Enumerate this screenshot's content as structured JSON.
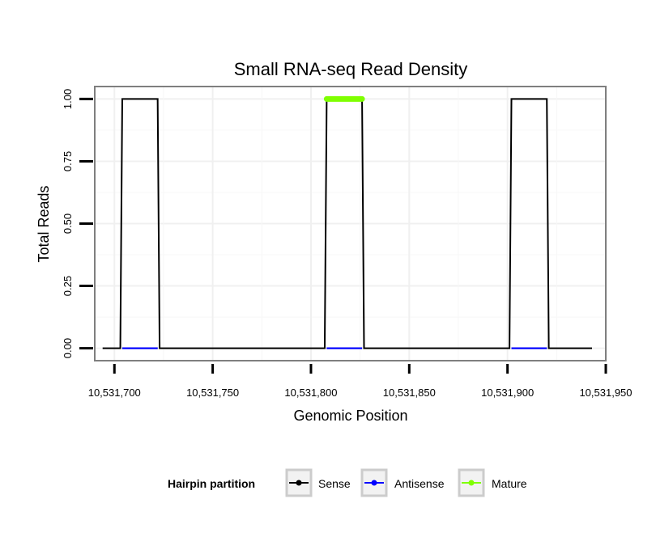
{
  "chart_data": {
    "type": "line",
    "title": "Small RNA-seq Read Density",
    "xlabel": "Genomic Position",
    "ylabel": "Total Reads",
    "xlim": [
      10531690,
      10531950
    ],
    "ylim": [
      -0.05,
      1.05
    ],
    "x_ticks": [
      10531700,
      10531750,
      10531800,
      10531850,
      10531900,
      10531950
    ],
    "x_tick_labels": [
      "10,531,700",
      "10,531,750",
      "10,531,800",
      "10,531,850",
      "10,531,900",
      "10,531,950"
    ],
    "y_ticks": [
      0,
      0.25,
      0.5,
      0.75,
      1.0
    ],
    "y_tick_labels": [
      "0.00",
      "0.25",
      "0.50",
      "0.75",
      "1.00"
    ],
    "grid": true,
    "legend_position": "bottom",
    "legend": {
      "title": "Hairpin partition",
      "entries": [
        "Sense",
        "Antisense",
        "Mature"
      ]
    },
    "series": [
      {
        "name": "Sense",
        "color": "#000000",
        "x": [
          10531694,
          10531703,
          10531704,
          10531722,
          10531723,
          10531807,
          10531808,
          10531826,
          10531827,
          10531901,
          10531902,
          10531920,
          10531921,
          10531943
        ],
        "values": [
          0,
          0,
          1,
          1,
          0,
          0,
          1,
          1,
          0,
          0,
          1,
          1,
          0,
          0
        ]
      },
      {
        "name": "Antisense",
        "color": "#0000ff",
        "segments": [
          {
            "x": [
              10531704,
              10531722
            ],
            "values": [
              0,
              0
            ]
          },
          {
            "x": [
              10531808,
              10531826
            ],
            "values": [
              0,
              0
            ]
          },
          {
            "x": [
              10531902,
              10531920
            ],
            "values": [
              0,
              0
            ]
          }
        ]
      },
      {
        "name": "Mature",
        "color": "#7fff00",
        "x": [
          10531808,
          10531826
        ],
        "values": [
          1,
          1
        ]
      }
    ]
  }
}
